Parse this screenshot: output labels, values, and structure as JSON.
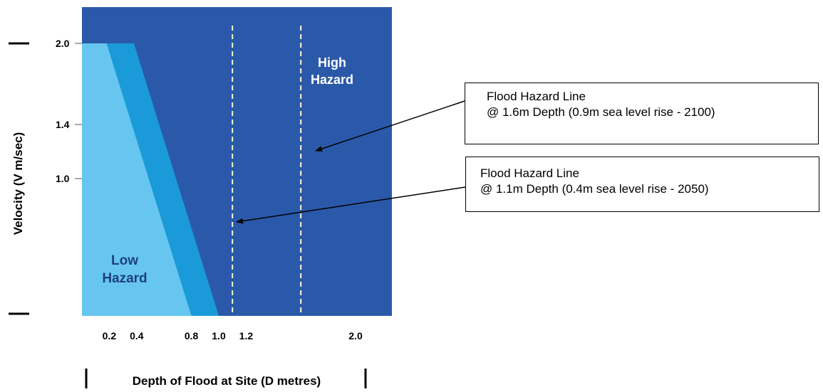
{
  "chart_data": {
    "type": "area",
    "ylabel": "Velocity (V m/sec)",
    "xlabel": "Depth of Flood at Site (D metres)",
    "x_ticks": [
      {
        "value": 0.2,
        "label": "0.2"
      },
      {
        "value": 0.4,
        "label": "0.4"
      },
      {
        "value": 0.8,
        "label": "0.8"
      },
      {
        "value": 1.0,
        "label": "1.0"
      },
      {
        "value": 1.2,
        "label": "1.2"
      },
      {
        "value": 2.0,
        "label": "2.0"
      }
    ],
    "y_ticks": [
      {
        "value": 2.0,
        "label": "2.0"
      },
      {
        "value": 1.4,
        "label": "1.4"
      },
      {
        "value": 1.0,
        "label": "1.0"
      }
    ],
    "regions": [
      {
        "label": "Low\nHazard",
        "polygon": [
          [
            0,
            0
          ],
          [
            0,
            2.0
          ],
          [
            0.18,
            2.0
          ],
          [
            0.8,
            0
          ]
        ]
      },
      {
        "label": "",
        "polygon": [
          [
            0.18,
            0
          ],
          [
            0.18,
            2.0
          ],
          [
            0.38,
            2.0
          ],
          [
            1.0,
            0
          ]
        ]
      },
      {
        "label": "High\nHazard",
        "polygon": []
      }
    ],
    "threshold_lines": [
      {
        "x": 1.1,
        "label": "Flood Hazard Line",
        "sublabel": "@ 1.1m Depth (0.4m sea level rise - 2050)"
      },
      {
        "x": 1.6,
        "label": "Flood Hazard Line",
        "sublabel": "@ 1.6m Depth (0.9m sea level rise - 2100)"
      }
    ],
    "colors": {
      "low": "#66c6f0",
      "medium": "#1b9ad9",
      "high": "#2b59aa",
      "dashed": "#fff7cc"
    }
  },
  "labels": {
    "low_hazard": [
      "Low",
      "Hazard"
    ],
    "high_hazard": [
      "High",
      "Hazard"
    ]
  },
  "callouts": {
    "upper": {
      "title": "Flood Hazard Line",
      "detail": "@ 1.6m Depth (0.9m sea level rise - 2100)"
    },
    "lower": {
      "title": "Flood Hazard Line",
      "detail": "@ 1.1m Depth (0.4m sea level rise - 2050)"
    }
  }
}
